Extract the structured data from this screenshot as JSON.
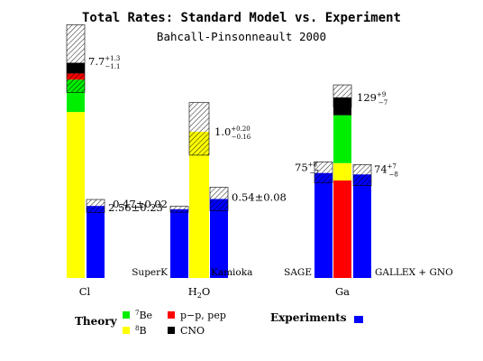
{
  "chart_data": {
    "type": "bar",
    "title": "Total Rates: Standard Model vs. Experiment",
    "subtitle": "Bahcall-Pinsonneault 2000",
    "colors": {
      "pp_pep": "#ff0000",
      "be7": "#00ee00",
      "b8": "#ffff00",
      "cno": "#000000",
      "experiment": "#0000ff",
      "hatch": "#000000"
    },
    "groups": [
      {
        "category": "Cl",
        "theory": {
          "total": 7.7,
          "err_plus": 1.3,
          "err_minus": 1.1,
          "label_value": "7.7",
          "label_plus": "+1.3",
          "label_minus": "−1.1",
          "components": {
            "b8": 5.9,
            "be7": 1.15,
            "cno": 0.38,
            "pp_pep": 0.22
          }
        },
        "experiment": {
          "label": "",
          "value": 2.56,
          "error": 0.23,
          "value_label": "2.56±0.23"
        }
      },
      {
        "category": "H2O",
        "category_main": "H",
        "category_sub": "2",
        "category_tail": "O",
        "theory": {
          "total": 1.0,
          "err_plus": 0.2,
          "err_minus": 0.16,
          "label_value": "1.0",
          "label_plus": "+0.20",
          "label_minus": "−0.16",
          "components": {
            "b8": 1.0
          }
        },
        "experiments": [
          {
            "label": "SuperK",
            "value": 0.47,
            "error": 0.02,
            "value_label": "0.47±0.02"
          },
          {
            "label": "Kamioka",
            "value": 0.54,
            "error": 0.08,
            "value_label": "0.54±0.08"
          }
        ]
      },
      {
        "category": "Ga",
        "theory": {
          "total": 129,
          "err_plus": 9,
          "err_minus": 7,
          "label_value": "129",
          "label_plus": "+9",
          "label_minus": "−7",
          "components": {
            "pp_pep": 69.7,
            "b8": 12.4,
            "be7": 34.2,
            "cno": 12.7
          }
        },
        "experiments": [
          {
            "label": "SAGE",
            "value": 75,
            "err_plus": 8,
            "err_minus": 7,
            "label_value": "75",
            "label_plus": "+8",
            "label_minus": "−7"
          },
          {
            "label": "GALLEX + GNO",
            "value": 74,
            "err_plus": 7,
            "err_minus": 8,
            "label_value": "74",
            "label_plus": "+7",
            "label_minus": "−8"
          }
        ]
      }
    ],
    "legend": {
      "theory_title": "Theory",
      "items": [
        {
          "key": "be7",
          "label_sup": "7",
          "label": "Be"
        },
        {
          "key": "pp_pep",
          "label_sup": "",
          "label": "p−p, pep"
        },
        {
          "key": "b8",
          "label_sup": "8",
          "label": "B"
        },
        {
          "key": "cno",
          "label_sup": "",
          "label": "CNO"
        }
      ],
      "experiments_title": "Experiments",
      "placement": "bottom"
    }
  }
}
